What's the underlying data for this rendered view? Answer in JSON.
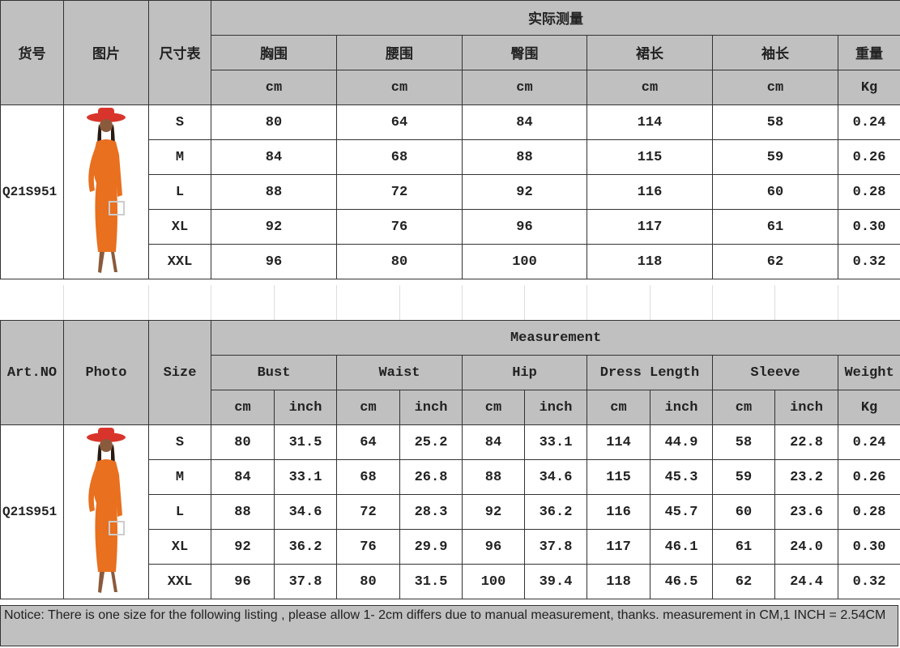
{
  "cn_table": {
    "art_header": "货号",
    "photo_header": "图片",
    "size_header": "尺寸表",
    "group_header": "实际测量",
    "columns": [
      {
        "label": "胸围",
        "unit": "cm"
      },
      {
        "label": "腰围",
        "unit": "cm"
      },
      {
        "label": "臀围",
        "unit": "cm"
      },
      {
        "label": "裙长",
        "unit": "cm"
      },
      {
        "label": "袖长",
        "unit": "cm"
      }
    ],
    "weight": {
      "label": "重量",
      "unit": "Kg"
    },
    "art_no": "Q21S951",
    "rows": [
      {
        "size": "S",
        "values": [
          "80",
          "64",
          "84",
          "114",
          "58"
        ],
        "weight": "0.24"
      },
      {
        "size": "M",
        "values": [
          "84",
          "68",
          "88",
          "115",
          "59"
        ],
        "weight": "0.26"
      },
      {
        "size": "L",
        "values": [
          "88",
          "72",
          "92",
          "116",
          "60"
        ],
        "weight": "0.28"
      },
      {
        "size": "XL",
        "values": [
          "92",
          "76",
          "96",
          "117",
          "61"
        ],
        "weight": "0.30"
      },
      {
        "size": "XXL",
        "values": [
          "96",
          "80",
          "100",
          "118",
          "62"
        ],
        "weight": "0.32"
      }
    ]
  },
  "en_table": {
    "art_header": "Art.NO",
    "photo_header": "Photo",
    "size_header": "Size",
    "group_header": "Measurement",
    "columns": [
      {
        "label": "Bust",
        "units": [
          "cm",
          "inch"
        ]
      },
      {
        "label": "Waist",
        "units": [
          "cm",
          "inch"
        ]
      },
      {
        "label": "Hip",
        "units": [
          "cm",
          "inch"
        ]
      },
      {
        "label": "Dress Length",
        "units": [
          "cm",
          "inch"
        ]
      },
      {
        "label": "Sleeve",
        "units": [
          "cm",
          "inch"
        ]
      }
    ],
    "weight": {
      "label": "Weight",
      "unit": "Kg"
    },
    "art_no": "Q21S951",
    "rows": [
      {
        "size": "S",
        "values": [
          "80",
          "31.5",
          "64",
          "25.2",
          "84",
          "33.1",
          "114",
          "44.9",
          "58",
          "22.8"
        ],
        "weight": "0.24"
      },
      {
        "size": "M",
        "values": [
          "84",
          "33.1",
          "68",
          "26.8",
          "88",
          "34.6",
          "115",
          "45.3",
          "59",
          "23.2"
        ],
        "weight": "0.26"
      },
      {
        "size": "L",
        "values": [
          "88",
          "34.6",
          "72",
          "28.3",
          "92",
          "36.2",
          "116",
          "45.7",
          "60",
          "23.6"
        ],
        "weight": "0.28"
      },
      {
        "size": "XL",
        "values": [
          "92",
          "36.2",
          "76",
          "29.9",
          "96",
          "37.8",
          "117",
          "46.1",
          "61",
          "24.0"
        ],
        "weight": "0.30"
      },
      {
        "size": "XXL",
        "values": [
          "96",
          "37.8",
          "80",
          "31.5",
          "100",
          "39.4",
          "118",
          "46.5",
          "62",
          "24.4"
        ],
        "weight": "0.32"
      }
    ]
  },
  "notice": "Notice: There is one size for the following listing , please allow 1- 2cm differs due to manual measurement, thanks.  measurement in CM,1 INCH = 2.54CM",
  "colors": {
    "header_bg": "#c0c0c0",
    "dress": "#e8701f",
    "hat": "#d9342b"
  }
}
